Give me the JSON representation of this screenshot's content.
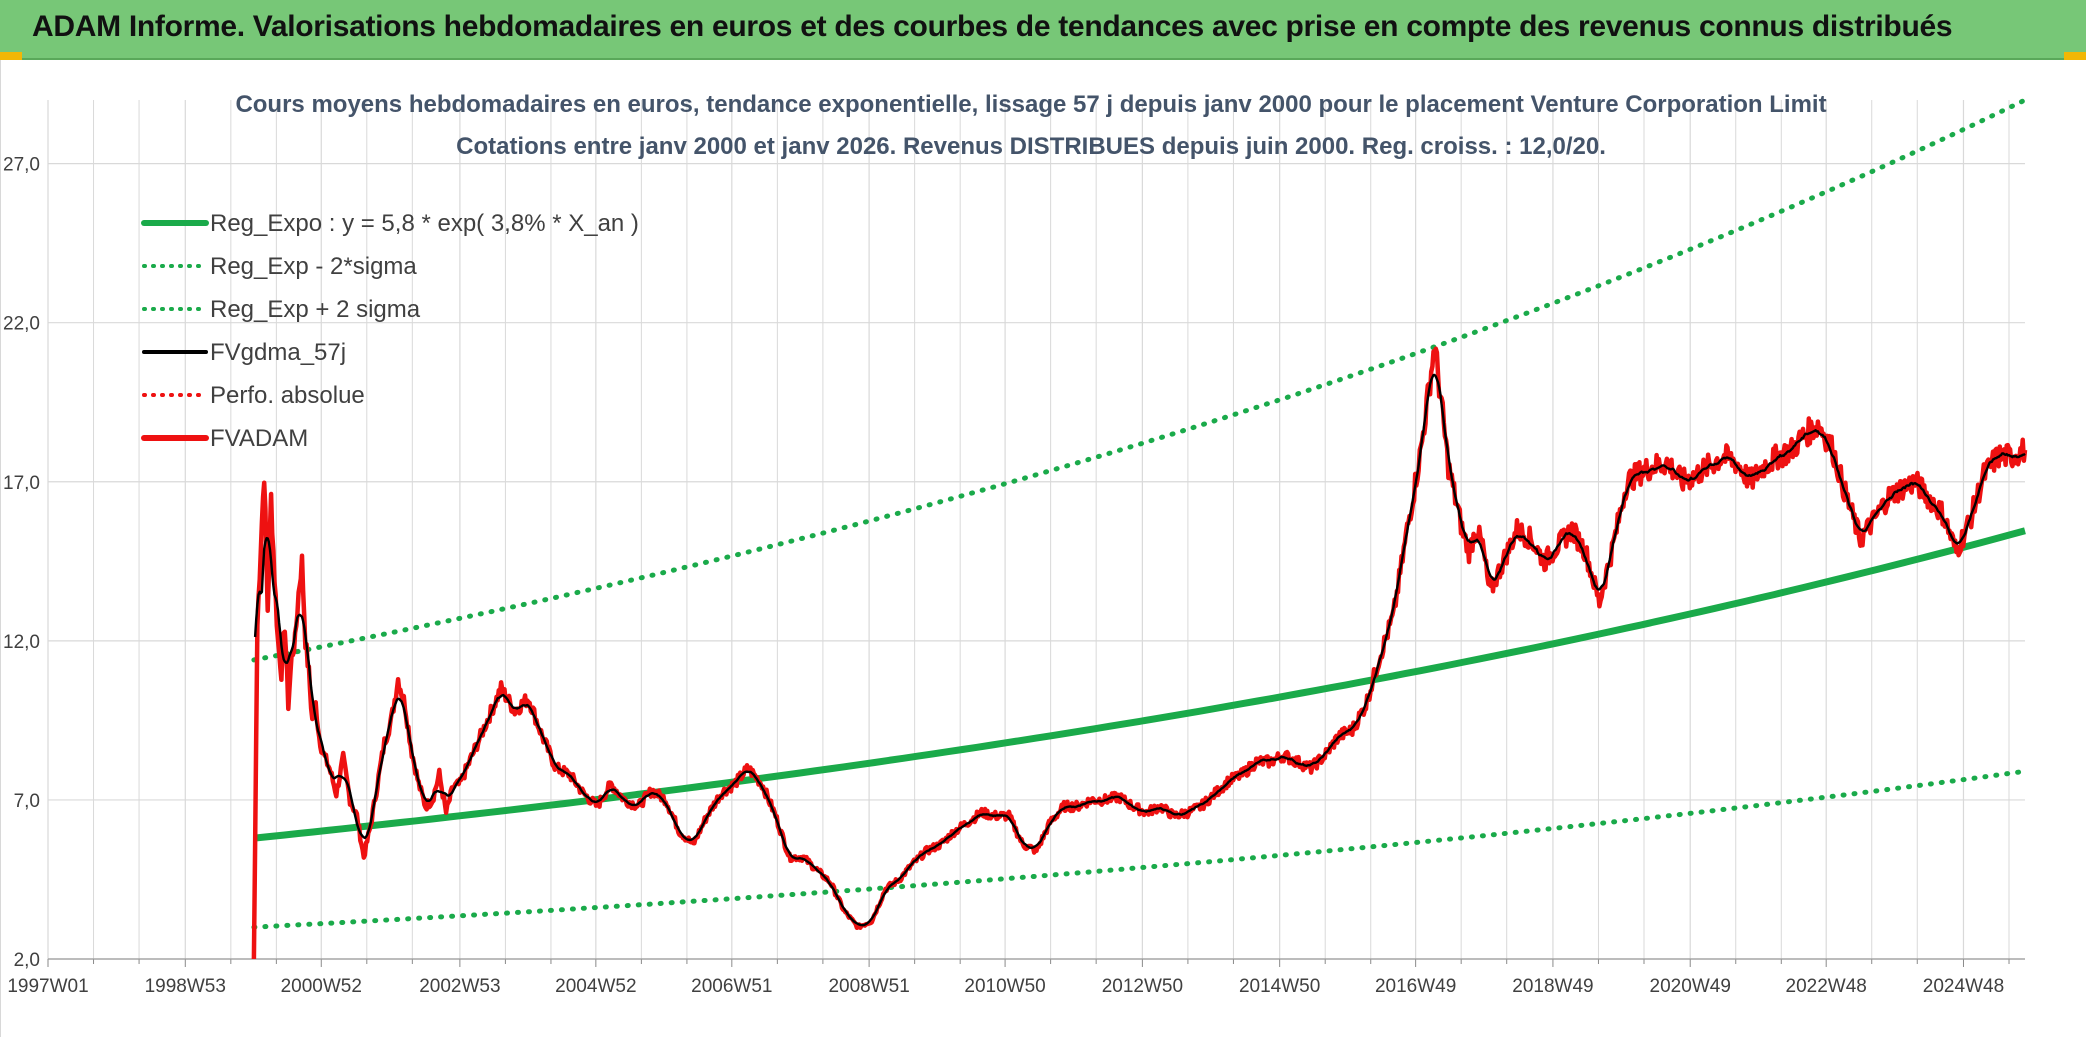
{
  "banner": {
    "title": "ADAM Informe. Valorisations hebdomadaires en euros et des courbes de tendances avec prise en compte des revenus connus distribués"
  },
  "colors": {
    "banner_bg": "#77c777",
    "trend": "#1aaa4a",
    "band": "#1aaa4a",
    "smoothed": "#000000",
    "price": "#ee1111",
    "perf": "#ee1111",
    "grid": "#d9d9d9",
    "text": "#404040"
  },
  "chart_data": {
    "type": "line",
    "title": [
      "Cours moyens hebdomadaires en euros, tendance exponentielle, lissage 57 j depuis janv 2000 pour le placement Venture Corporation Limit",
      "Cotations entre janv 2000 et janv 2026. Revenus DISTRIBUES depuis juin 2000. Reg. croiss. : 12,0/20."
    ],
    "xlabel": "",
    "ylabel": "",
    "x_tick_labels": [
      "1997W01",
      "1998W53",
      "2000W52",
      "2002W53",
      "2004W52",
      "2006W51",
      "2008W51",
      "2010W50",
      "2012W50",
      "2014W50",
      "2016W49",
      "2018W49",
      "2020W49",
      "2022W48",
      "2024W48"
    ],
    "y_tick_labels": [
      "2,0",
      "7,0",
      "12,0",
      "17,0",
      "22,0",
      "27,0"
    ],
    "xlim": [
      1997.0,
      2025.8
    ],
    "ylim": [
      2.0,
      29.0
    ],
    "grid": true,
    "legend_position": "top-left",
    "legend": [
      {
        "label": "Reg_Expo : y = 5,8 * exp( 3,8% *  X_an )",
        "style": "solid-thick",
        "color": "#1aaa4a"
      },
      {
        "label": "Reg_Exp - 2*sigma",
        "style": "dotted",
        "color": "#1aaa4a"
      },
      {
        "label": "Reg_Exp + 2 sigma",
        "style": "dotted",
        "color": "#1aaa4a"
      },
      {
        "label": "FVgdma_57j",
        "style": "solid",
        "color": "#000000"
      },
      {
        "label": "Perfo. absolue",
        "style": "dotted",
        "color": "#ee1111"
      },
      {
        "label": "FVADAM",
        "style": "solid-thick",
        "color": "#ee1111"
      }
    ],
    "series": [
      {
        "name": "Reg_Expo : y = 5,8 * exp( 3,8% *  X_an )",
        "x_start": 2000.0,
        "x_end": 2025.8,
        "y_start": 5.8,
        "growth_rate": 0.038
      },
      {
        "name": "Reg_Exp - 2*sigma",
        "x_start": 2000.0,
        "x_end": 2025.8,
        "y_start": 3.0,
        "y_end": 7.9
      },
      {
        "name": "Reg_Exp + 2 sigma",
        "x_start": 2000.0,
        "x_end": 2025.8,
        "y_start": 11.4,
        "y_end": 29.0
      },
      {
        "name": "FVADAM",
        "x": [
          2000.0,
          2000.05,
          2000.1,
          2000.15,
          2000.2,
          2000.25,
          2000.3,
          2000.35,
          2000.4,
          2000.45,
          2000.5,
          2000.55,
          2000.6,
          2000.65,
          2000.7,
          2000.75,
          2000.8,
          2000.85,
          2000.9,
          2000.95,
          2001.0,
          2001.1,
          2001.2,
          2001.3,
          2001.4,
          2001.5,
          2001.6,
          2001.7,
          2001.8,
          2001.9,
          2002.0,
          2002.1,
          2002.2,
          2002.3,
          2002.4,
          2002.5,
          2002.6,
          2002.7,
          2002.8,
          2002.9,
          2003.0,
          2003.2,
          2003.4,
          2003.6,
          2003.8,
          2004.0,
          2004.2,
          2004.4,
          2004.6,
          2004.8,
          2005.0,
          2005.2,
          2005.4,
          2005.6,
          2005.8,
          2006.0,
          2006.2,
          2006.4,
          2006.6,
          2006.8,
          2007.0,
          2007.2,
          2007.4,
          2007.6,
          2007.8,
          2008.0,
          2008.2,
          2008.4,
          2008.6,
          2008.8,
          2009.0,
          2009.2,
          2009.4,
          2009.6,
          2009.8,
          2010.0,
          2010.2,
          2010.4,
          2010.6,
          2010.8,
          2011.0,
          2011.2,
          2011.4,
          2011.6,
          2011.8,
          2012.0,
          2012.2,
          2012.4,
          2012.6,
          2012.8,
          2013.0,
          2013.2,
          2013.4,
          2013.6,
          2013.8,
          2014.0,
          2014.2,
          2014.4,
          2014.6,
          2014.8,
          2015.0,
          2015.2,
          2015.4,
          2015.6,
          2015.8,
          2016.0,
          2016.2,
          2016.4,
          2016.6,
          2016.8,
          2017.0,
          2017.2,
          2017.4,
          2017.6,
          2017.7,
          2017.8,
          2017.9,
          2018.0,
          2018.2,
          2018.4,
          2018.6,
          2018.8,
          2019.0,
          2019.2,
          2019.4,
          2019.6,
          2019.8,
          2020.0,
          2020.2,
          2020.4,
          2020.6,
          2020.8,
          2021.0,
          2021.2,
          2021.4,
          2021.6,
          2021.8,
          2022.0,
          2022.2,
          2022.4,
          2022.6,
          2022.8,
          2023.0,
          2023.2,
          2023.4,
          2023.6,
          2023.8,
          2024.0,
          2024.2,
          2024.4,
          2024.6,
          2024.8,
          2025.0,
          2025.2,
          2025.4,
          2025.6,
          2025.8
        ],
        "y": [
          2.0,
          12.5,
          15.0,
          17.3,
          13.0,
          16.5,
          14.0,
          12.0,
          11.0,
          12.5,
          10.0,
          11.5,
          12.0,
          13.5,
          14.5,
          12.0,
          11.0,
          9.5,
          10.0,
          9.0,
          8.5,
          8.0,
          7.2,
          8.3,
          7.0,
          6.5,
          5.2,
          6.2,
          7.5,
          8.8,
          9.5,
          10.8,
          10.0,
          8.5,
          7.5,
          6.8,
          7.0,
          7.8,
          6.6,
          7.4,
          7.5,
          8.5,
          9.5,
          10.5,
          9.8,
          10.2,
          9.0,
          8.0,
          7.8,
          7.2,
          6.8,
          7.5,
          7.0,
          6.8,
          7.3,
          7.0,
          6.0,
          5.6,
          6.5,
          7.2,
          7.5,
          8.0,
          7.5,
          6.5,
          5.2,
          5.2,
          4.8,
          4.4,
          3.5,
          3.0,
          3.2,
          4.2,
          4.5,
          5.0,
          5.4,
          5.6,
          6.0,
          6.3,
          6.6,
          6.5,
          6.5,
          5.6,
          5.4,
          6.3,
          6.8,
          6.8,
          7.0,
          7.0,
          7.1,
          6.8,
          6.6,
          6.8,
          6.5,
          6.6,
          6.8,
          7.2,
          7.6,
          7.8,
          8.2,
          8.2,
          8.4,
          8.2,
          8.0,
          8.4,
          9.0,
          9.2,
          10.0,
          11.5,
          12.8,
          15.5,
          18.0,
          21.3,
          17.5,
          15.5,
          14.8,
          15.5,
          15.0,
          13.5,
          14.5,
          15.5,
          15.2,
          14.5,
          15.0,
          15.5,
          14.8,
          13.2,
          15.0,
          17.0,
          17.3,
          17.5,
          17.6,
          17.0,
          17.2,
          17.5,
          17.8,
          17.6,
          17.0,
          17.5,
          17.8,
          18.0,
          18.5,
          18.8,
          18.0,
          16.5,
          15.2,
          15.8,
          16.5,
          16.8,
          17.0,
          16.5,
          16.0,
          14.8,
          15.8,
          17.2,
          17.8,
          17.8,
          18.0
        ],
        "color": "#ee1111"
      },
      {
        "name": "FVgdma_57j",
        "derived_from": "FVADAM",
        "smoothing": "57-day moving average",
        "x_start": 2000.05,
        "color": "#000000"
      },
      {
        "name": "Perfo. absolue",
        "color": "#ee1111",
        "note": "not visible over the plotted range"
      }
    ]
  }
}
